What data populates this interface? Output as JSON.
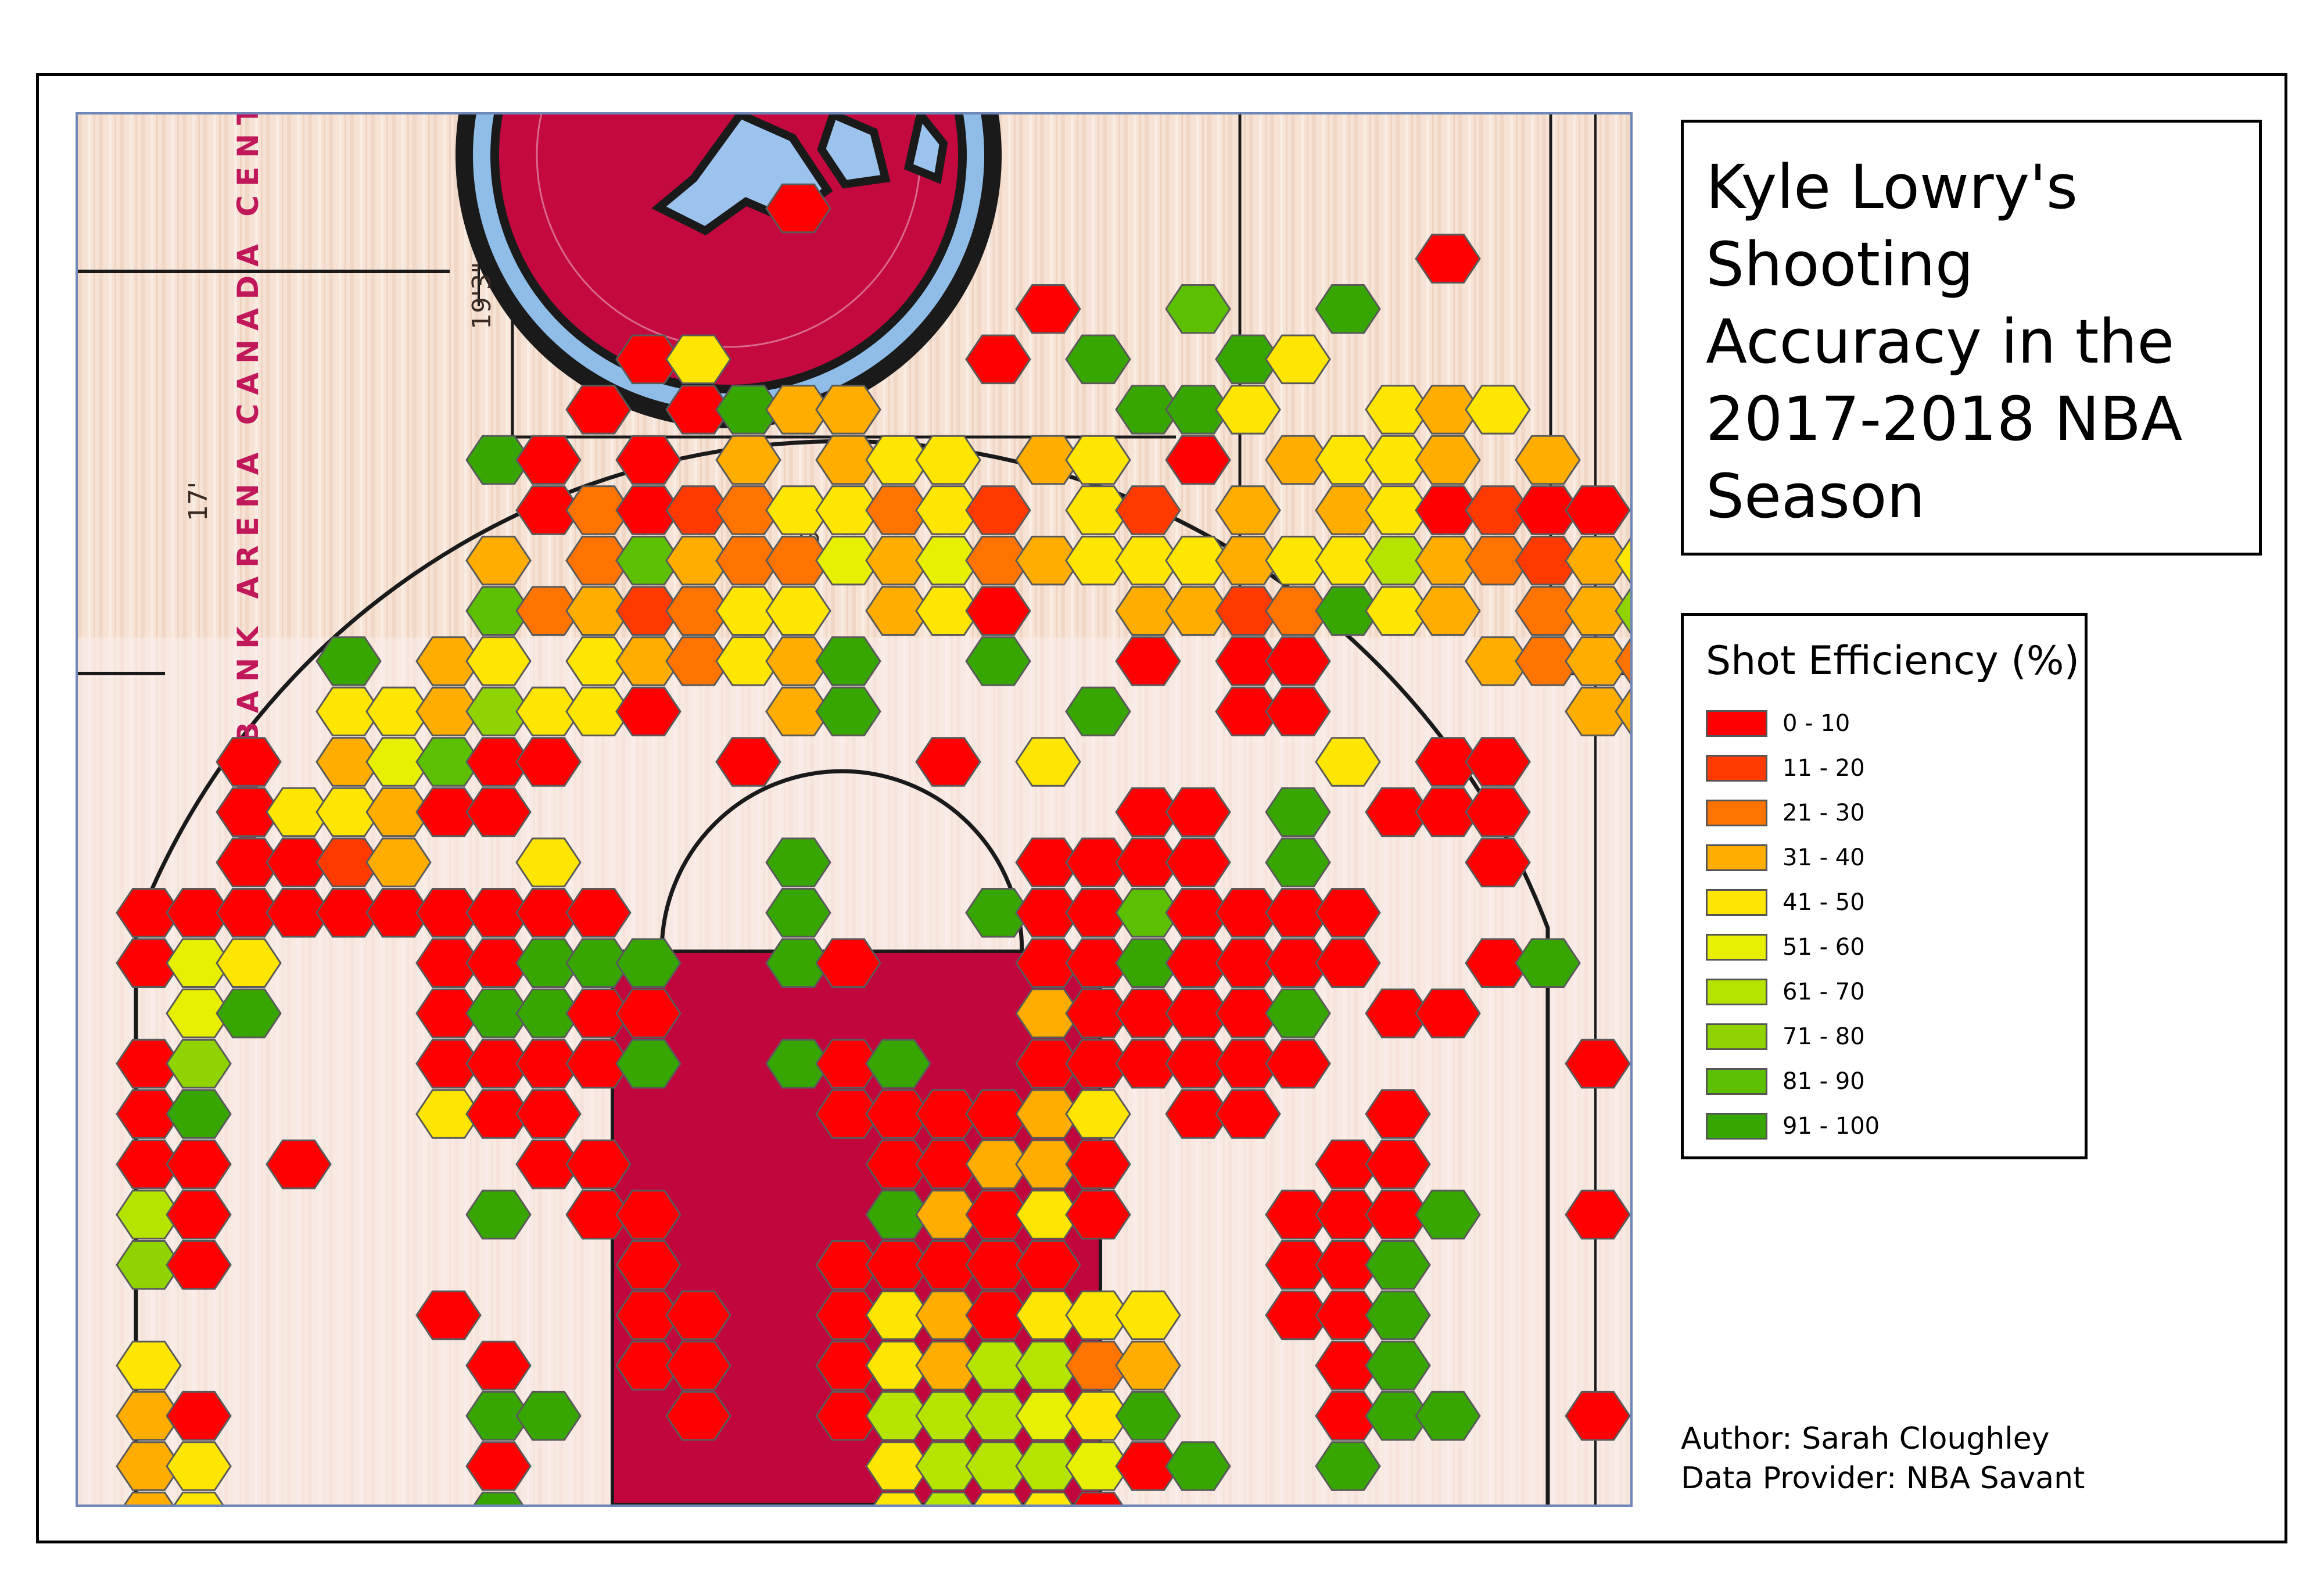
{
  "title": "Kyle Lowry's Shooting Accuracy in the 2017-2018 NBA Season",
  "title_lines": [
    "Kyle Lowry's",
    "Shooting",
    "Accuracy in the",
    "2017-2018 NBA",
    "Season"
  ],
  "legend": {
    "title": "Shot Efficiency (%)",
    "items": [
      {
        "label": "0 - 10",
        "color": "#ff0000"
      },
      {
        "label": "11 - 20",
        "color": "#ff3a00"
      },
      {
        "label": "21 - 30",
        "color": "#ff7400"
      },
      {
        "label": "31 - 40",
        "color": "#ffad00"
      },
      {
        "label": "41 - 50",
        "color": "#ffe600"
      },
      {
        "label": "51 - 60",
        "color": "#e6f000"
      },
      {
        "label": "61 - 70",
        "color": "#b5e400"
      },
      {
        "label": "71 - 80",
        "color": "#8fd400"
      },
      {
        "label": "81 - 90",
        "color": "#5cbf00"
      },
      {
        "label": "91 - 100",
        "color": "#37a600"
      }
    ]
  },
  "court_labels": {
    "arena": "SCOTIABANK ARENA CANADA CENTRE",
    "dim_1": "19'3\"",
    "dim_2": "17'",
    "dim_3": "19'3\""
  },
  "credits": {
    "author": "Author: Sarah Cloughley",
    "provider": "Data Provider: NBA Savant"
  },
  "hex_bins": [
    [
      15,
      1,
      0
    ],
    [
      28,
      2,
      0
    ],
    [
      20,
      3,
      0
    ],
    [
      23,
      3,
      8
    ],
    [
      26,
      3,
      9
    ],
    [
      34,
      3,
      0
    ],
    [
      12,
      4,
      0
    ],
    [
      13,
      4,
      4
    ],
    [
      19,
      4,
      0
    ],
    [
      21,
      4,
      9
    ],
    [
      24,
      4,
      9
    ],
    [
      25,
      4,
      4
    ],
    [
      11,
      5,
      0
    ],
    [
      13,
      5,
      0
    ],
    [
      14,
      5,
      9
    ],
    [
      15,
      5,
      3
    ],
    [
      16,
      5,
      3
    ],
    [
      22,
      5,
      9
    ],
    [
      23,
      5,
      9
    ],
    [
      24,
      5,
      4
    ],
    [
      27,
      5,
      4
    ],
    [
      28,
      5,
      3
    ],
    [
      29,
      5,
      4
    ],
    [
      35,
      5,
      0
    ],
    [
      9,
      6,
      9
    ],
    [
      10,
      6,
      0
    ],
    [
      12,
      6,
      0
    ],
    [
      14,
      6,
      3
    ],
    [
      16,
      6,
      3
    ],
    [
      17,
      6,
      4
    ],
    [
      18,
      6,
      4
    ],
    [
      20,
      6,
      3
    ],
    [
      21,
      6,
      4
    ],
    [
      23,
      6,
      0
    ],
    [
      25,
      6,
      3
    ],
    [
      26,
      6,
      4
    ],
    [
      27,
      6,
      4
    ],
    [
      28,
      6,
      3
    ],
    [
      30,
      6,
      3
    ],
    [
      10,
      7,
      0
    ],
    [
      11,
      7,
      2
    ],
    [
      12,
      7,
      0
    ],
    [
      13,
      7,
      1
    ],
    [
      14,
      7,
      2
    ],
    [
      15,
      7,
      4
    ],
    [
      16,
      7,
      4
    ],
    [
      17,
      7,
      2
    ],
    [
      18,
      7,
      4
    ],
    [
      19,
      7,
      1
    ],
    [
      21,
      7,
      4
    ],
    [
      22,
      7,
      1
    ],
    [
      24,
      7,
      3
    ],
    [
      26,
      7,
      3
    ],
    [
      27,
      7,
      4
    ],
    [
      28,
      7,
      0
    ],
    [
      29,
      7,
      1
    ],
    [
      30,
      7,
      0
    ],
    [
      31,
      7,
      0
    ],
    [
      35,
      7,
      0
    ],
    [
      9,
      8,
      3
    ],
    [
      11,
      8,
      2
    ],
    [
      12,
      8,
      8
    ],
    [
      13,
      8,
      3
    ],
    [
      14,
      8,
      2
    ],
    [
      15,
      8,
      2
    ],
    [
      16,
      8,
      5
    ],
    [
      17,
      8,
      3
    ],
    [
      18,
      8,
      5
    ],
    [
      19,
      8,
      2
    ],
    [
      20,
      8,
      3
    ],
    [
      21,
      8,
      4
    ],
    [
      22,
      8,
      4
    ],
    [
      23,
      8,
      4
    ],
    [
      24,
      8,
      3
    ],
    [
      25,
      8,
      4
    ],
    [
      26,
      8,
      4
    ],
    [
      27,
      8,
      6
    ],
    [
      28,
      8,
      3
    ],
    [
      29,
      8,
      2
    ],
    [
      30,
      8,
      1
    ],
    [
      31,
      8,
      3
    ],
    [
      32,
      8,
      4
    ],
    [
      33,
      8,
      4
    ],
    [
      9,
      9,
      8
    ],
    [
      10,
      9,
      2
    ],
    [
      11,
      9,
      3
    ],
    [
      12,
      9,
      1
    ],
    [
      13,
      9,
      2
    ],
    [
      14,
      9,
      4
    ],
    [
      15,
      9,
      4
    ],
    [
      17,
      9,
      3
    ],
    [
      18,
      9,
      4
    ],
    [
      19,
      9,
      0
    ],
    [
      22,
      9,
      3
    ],
    [
      23,
      9,
      3
    ],
    [
      24,
      9,
      1
    ],
    [
      25,
      9,
      2
    ],
    [
      26,
      9,
      9
    ],
    [
      27,
      9,
      4
    ],
    [
      28,
      9,
      3
    ],
    [
      30,
      9,
      2
    ],
    [
      31,
      9,
      3
    ],
    [
      32,
      9,
      7
    ],
    [
      33,
      9,
      4
    ],
    [
      35,
      9,
      2
    ],
    [
      36,
      9,
      9
    ],
    [
      6,
      10,
      9
    ],
    [
      8,
      10,
      3
    ],
    [
      9,
      10,
      4
    ],
    [
      11,
      10,
      4
    ],
    [
      12,
      10,
      3
    ],
    [
      13,
      10,
      2
    ],
    [
      14,
      10,
      4
    ],
    [
      15,
      10,
      3
    ],
    [
      16,
      10,
      9
    ],
    [
      19,
      10,
      9
    ],
    [
      22,
      10,
      0
    ],
    [
      24,
      10,
      0
    ],
    [
      25,
      10,
      0
    ],
    [
      29,
      10,
      3
    ],
    [
      30,
      10,
      2
    ],
    [
      31,
      10,
      3
    ],
    [
      32,
      10,
      2
    ],
    [
      33,
      10,
      4
    ],
    [
      35,
      10,
      9
    ],
    [
      36,
      10,
      9
    ],
    [
      37,
      10,
      9
    ],
    [
      6,
      11,
      4
    ],
    [
      7,
      11,
      4
    ],
    [
      8,
      11,
      3
    ],
    [
      9,
      11,
      7
    ],
    [
      10,
      11,
      4
    ],
    [
      11,
      11,
      4
    ],
    [
      12,
      11,
      0
    ],
    [
      15,
      11,
      3
    ],
    [
      16,
      11,
      9
    ],
    [
      21,
      11,
      9
    ],
    [
      24,
      11,
      0
    ],
    [
      25,
      11,
      0
    ],
    [
      31,
      11,
      3
    ],
    [
      32,
      11,
      3
    ],
    [
      33,
      11,
      3
    ],
    [
      34,
      11,
      3
    ],
    [
      35,
      11,
      9
    ],
    [
      4,
      12,
      0
    ],
    [
      6,
      12,
      3
    ],
    [
      7,
      12,
      5
    ],
    [
      8,
      12,
      8
    ],
    [
      9,
      12,
      0
    ],
    [
      10,
      12,
      0
    ],
    [
      14,
      12,
      0
    ],
    [
      18,
      12,
      0
    ],
    [
      20,
      12,
      4
    ],
    [
      26,
      12,
      4
    ],
    [
      28,
      12,
      0
    ],
    [
      29,
      12,
      0
    ],
    [
      33,
      12,
      3
    ],
    [
      34,
      12,
      3
    ],
    [
      4,
      13,
      0
    ],
    [
      5,
      13,
      4
    ],
    [
      6,
      13,
      4
    ],
    [
      7,
      13,
      3
    ],
    [
      8,
      13,
      0
    ],
    [
      9,
      13,
      0
    ],
    [
      22,
      13,
      0
    ],
    [
      23,
      13,
      0
    ],
    [
      25,
      13,
      9
    ],
    [
      27,
      13,
      0
    ],
    [
      28,
      13,
      0
    ],
    [
      29,
      13,
      0
    ],
    [
      35,
      13,
      6
    ],
    [
      4,
      14,
      0
    ],
    [
      5,
      14,
      0
    ],
    [
      6,
      14,
      1
    ],
    [
      7,
      14,
      3
    ],
    [
      10,
      14,
      4
    ],
    [
      15,
      14,
      9
    ],
    [
      20,
      14,
      0
    ],
    [
      21,
      14,
      0
    ],
    [
      22,
      14,
      0
    ],
    [
      23,
      14,
      0
    ],
    [
      25,
      14,
      9
    ],
    [
      29,
      14,
      0
    ],
    [
      35,
      14,
      3
    ],
    [
      2,
      15,
      0
    ],
    [
      3,
      15,
      0
    ],
    [
      4,
      15,
      0
    ],
    [
      5,
      15,
      0
    ],
    [
      6,
      15,
      0
    ],
    [
      7,
      15,
      0
    ],
    [
      8,
      15,
      0
    ],
    [
      9,
      15,
      0
    ],
    [
      10,
      15,
      0
    ],
    [
      11,
      15,
      0
    ],
    [
      15,
      15,
      9
    ],
    [
      19,
      15,
      9
    ],
    [
      20,
      15,
      0
    ],
    [
      21,
      15,
      0
    ],
    [
      22,
      15,
      8
    ],
    [
      23,
      15,
      0
    ],
    [
      24,
      15,
      0
    ],
    [
      25,
      15,
      0
    ],
    [
      26,
      15,
      0
    ],
    [
      36,
      15,
      9
    ],
    [
      37,
      15,
      4
    ],
    [
      2,
      16,
      0
    ],
    [
      3,
      16,
      5
    ],
    [
      4,
      16,
      4
    ],
    [
      8,
      16,
      0
    ],
    [
      9,
      16,
      0
    ],
    [
      10,
      16,
      9
    ],
    [
      11,
      16,
      9
    ],
    [
      12,
      16,
      9
    ],
    [
      15,
      16,
      9
    ],
    [
      16,
      16,
      0
    ],
    [
      20,
      16,
      0
    ],
    [
      21,
      16,
      0
    ],
    [
      22,
      16,
      9
    ],
    [
      23,
      16,
      0
    ],
    [
      24,
      16,
      0
    ],
    [
      25,
      16,
      0
    ],
    [
      26,
      16,
      0
    ],
    [
      29,
      16,
      0
    ],
    [
      30,
      16,
      9
    ],
    [
      35,
      16,
      9
    ],
    [
      36,
      16,
      0
    ],
    [
      37,
      16,
      3
    ],
    [
      3,
      17,
      5
    ],
    [
      4,
      17,
      9
    ],
    [
      8,
      17,
      0
    ],
    [
      9,
      17,
      9
    ],
    [
      10,
      17,
      9
    ],
    [
      11,
      17,
      0
    ],
    [
      12,
      17,
      0
    ],
    [
      20,
      17,
      3
    ],
    [
      21,
      17,
      0
    ],
    [
      22,
      17,
      0
    ],
    [
      23,
      17,
      0
    ],
    [
      24,
      17,
      0
    ],
    [
      25,
      17,
      9
    ],
    [
      27,
      17,
      0
    ],
    [
      28,
      17,
      0
    ],
    [
      37,
      17,
      3
    ],
    [
      38,
      17,
      9
    ],
    [
      2,
      18,
      0
    ],
    [
      3,
      18,
      7
    ],
    [
      8,
      18,
      0
    ],
    [
      9,
      18,
      0
    ],
    [
      10,
      18,
      0
    ],
    [
      11,
      18,
      0
    ],
    [
      12,
      18,
      9
    ],
    [
      15,
      18,
      9
    ],
    [
      16,
      18,
      0
    ],
    [
      17,
      18,
      9
    ],
    [
      20,
      18,
      0
    ],
    [
      21,
      18,
      0
    ],
    [
      22,
      18,
      0
    ],
    [
      23,
      18,
      0
    ],
    [
      24,
      18,
      0
    ],
    [
      25,
      18,
      0
    ],
    [
      31,
      18,
      0
    ],
    [
      37,
      18,
      9
    ],
    [
      38,
      18,
      9
    ],
    [
      2,
      19,
      0
    ],
    [
      3,
      19,
      9
    ],
    [
      8,
      19,
      4
    ],
    [
      9,
      19,
      0
    ],
    [
      10,
      19,
      0
    ],
    [
      16,
      19,
      0
    ],
    [
      17,
      19,
      0
    ],
    [
      18,
      19,
      0
    ],
    [
      19,
      19,
      0
    ],
    [
      20,
      19,
      3
    ],
    [
      21,
      19,
      4
    ],
    [
      23,
      19,
      0
    ],
    [
      24,
      19,
      0
    ],
    [
      27,
      19,
      0
    ],
    [
      37,
      19,
      0
    ],
    [
      38,
      19,
      0
    ],
    [
      2,
      20,
      0
    ],
    [
      3,
      20,
      0
    ],
    [
      5,
      20,
      0
    ],
    [
      10,
      20,
      0
    ],
    [
      11,
      20,
      0
    ],
    [
      17,
      20,
      0
    ],
    [
      18,
      20,
      0
    ],
    [
      19,
      20,
      3
    ],
    [
      20,
      20,
      3
    ],
    [
      21,
      20,
      0
    ],
    [
      26,
      20,
      0
    ],
    [
      27,
      20,
      0
    ],
    [
      37,
      20,
      3
    ],
    [
      38,
      20,
      5
    ],
    [
      2,
      21,
      6
    ],
    [
      3,
      21,
      0
    ],
    [
      9,
      21,
      9
    ],
    [
      11,
      21,
      0
    ],
    [
      12,
      21,
      0
    ],
    [
      17,
      21,
      9
    ],
    [
      18,
      21,
      3
    ],
    [
      19,
      21,
      0
    ],
    [
      20,
      21,
      4
    ],
    [
      21,
      21,
      0
    ],
    [
      25,
      21,
      0
    ],
    [
      26,
      21,
      0
    ],
    [
      27,
      21,
      0
    ],
    [
      28,
      21,
      9
    ],
    [
      31,
      21,
      0
    ],
    [
      37,
      21,
      9
    ],
    [
      38,
      21,
      3
    ],
    [
      2,
      22,
      7
    ],
    [
      3,
      22,
      0
    ],
    [
      12,
      22,
      0
    ],
    [
      16,
      22,
      0
    ],
    [
      17,
      22,
      0
    ],
    [
      18,
      22,
      0
    ],
    [
      19,
      22,
      0
    ],
    [
      20,
      22,
      0
    ],
    [
      25,
      22,
      0
    ],
    [
      26,
      22,
      0
    ],
    [
      27,
      22,
      9
    ],
    [
      33,
      22,
      0
    ],
    [
      38,
      22,
      0
    ],
    [
      8,
      23,
      0
    ],
    [
      12,
      23,
      0
    ],
    [
      13,
      23,
      0
    ],
    [
      16,
      23,
      0
    ],
    [
      17,
      23,
      4
    ],
    [
      18,
      23,
      3
    ],
    [
      19,
      23,
      0
    ],
    [
      20,
      23,
      4
    ],
    [
      21,
      23,
      4
    ],
    [
      22,
      23,
      4
    ],
    [
      25,
      23,
      0
    ],
    [
      26,
      23,
      0
    ],
    [
      27,
      23,
      9
    ],
    [
      37,
      23,
      9
    ],
    [
      38,
      23,
      0
    ],
    [
      2,
      24,
      4
    ],
    [
      9,
      24,
      0
    ],
    [
      12,
      24,
      0
    ],
    [
      13,
      24,
      0
    ],
    [
      16,
      24,
      0
    ],
    [
      17,
      24,
      4
    ],
    [
      18,
      24,
      3
    ],
    [
      19,
      24,
      6
    ],
    [
      20,
      24,
      6
    ],
    [
      21,
      24,
      2
    ],
    [
      22,
      24,
      3
    ],
    [
      26,
      24,
      0
    ],
    [
      27,
      24,
      9
    ],
    [
      37,
      24,
      9
    ],
    [
      38,
      24,
      5
    ],
    [
      2,
      25,
      3
    ],
    [
      3,
      25,
      0
    ],
    [
      9,
      25,
      9
    ],
    [
      10,
      25,
      9
    ],
    [
      13,
      25,
      0
    ],
    [
      16,
      25,
      0
    ],
    [
      17,
      25,
      6
    ],
    [
      18,
      25,
      6
    ],
    [
      19,
      25,
      6
    ],
    [
      20,
      25,
      5
    ],
    [
      21,
      25,
      4
    ],
    [
      22,
      25,
      9
    ],
    [
      26,
      25,
      0
    ],
    [
      27,
      25,
      9
    ],
    [
      28,
      25,
      9
    ],
    [
      31,
      25,
      0
    ],
    [
      33,
      25,
      0
    ],
    [
      38,
      25,
      5
    ],
    [
      2,
      26,
      3
    ],
    [
      3,
      26,
      4
    ],
    [
      9,
      26,
      0
    ],
    [
      17,
      26,
      4
    ],
    [
      18,
      26,
      6
    ],
    [
      19,
      26,
      6
    ],
    [
      20,
      26,
      6
    ],
    [
      21,
      26,
      5
    ],
    [
      22,
      26,
      0
    ],
    [
      23,
      26,
      9
    ],
    [
      26,
      26,
      9
    ],
    [
      37,
      26,
      9
    ],
    [
      38,
      26,
      4
    ],
    [
      2,
      27,
      3
    ],
    [
      3,
      27,
      4
    ],
    [
      9,
      27,
      9
    ],
    [
      17,
      27,
      4
    ],
    [
      18,
      27,
      6
    ],
    [
      19,
      27,
      4
    ],
    [
      20,
      27,
      4
    ],
    [
      21,
      27,
      0
    ],
    [
      38,
      27,
      3
    ],
    [
      2,
      28,
      4
    ],
    [
      3,
      28,
      3
    ],
    [
      38,
      28,
      9
    ]
  ]
}
